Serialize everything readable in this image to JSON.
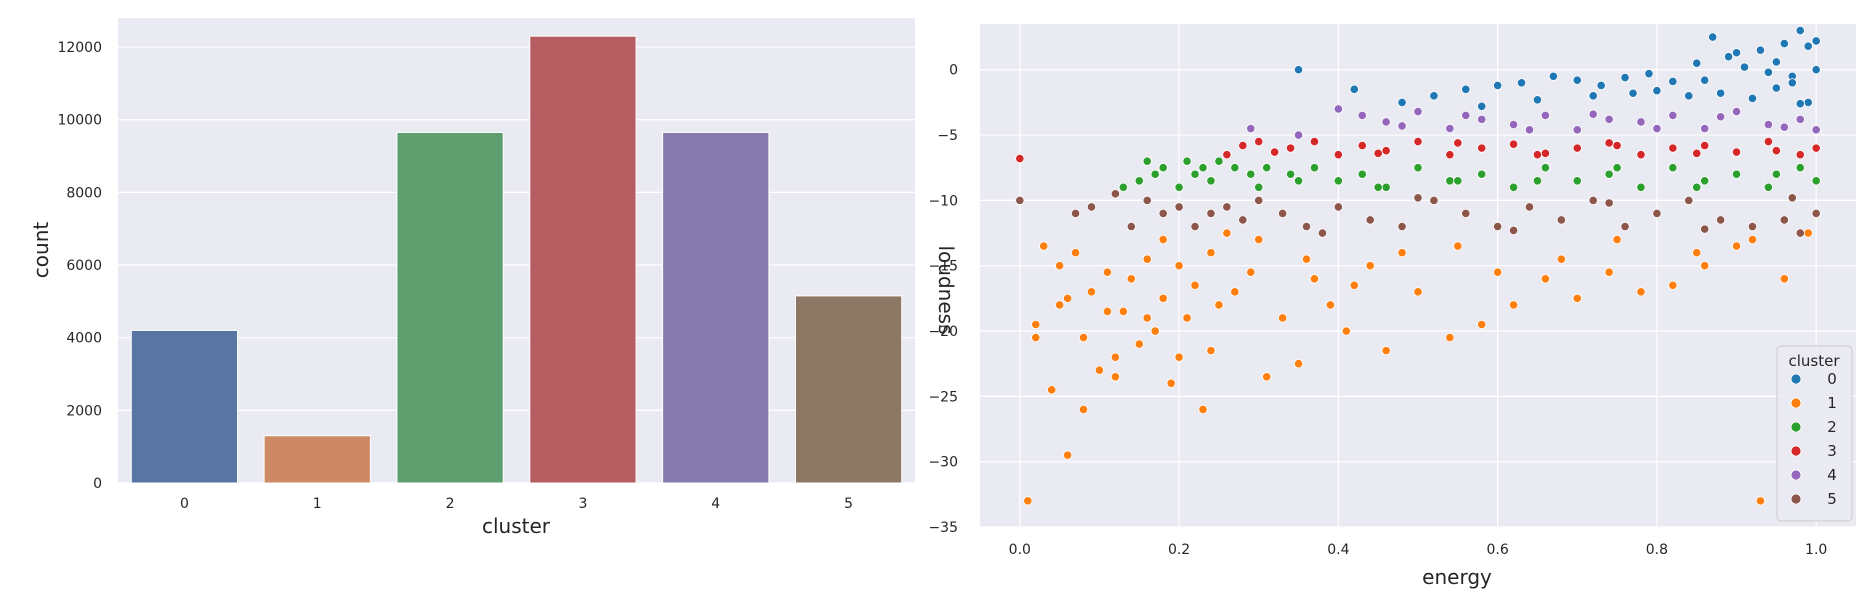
{
  "chart_data": [
    {
      "type": "bar",
      "title": "",
      "xlabel": "cluster",
      "ylabel": "count",
      "categories": [
        "0",
        "1",
        "2",
        "3",
        "4",
        "5"
      ],
      "values": [
        4200,
        1300,
        9650,
        12300,
        9650,
        5150
      ],
      "ylim": [
        0,
        12800
      ],
      "yticks": [
        0,
        2000,
        4000,
        6000,
        8000,
        10000,
        12000
      ],
      "grid": true,
      "colors": [
        "#5975a4",
        "#cc8963",
        "#5f9e6e",
        "#b55d60",
        "#857aab",
        "#8d7866"
      ]
    },
    {
      "type": "scatter",
      "title": "",
      "xlabel": "energy",
      "ylabel": "loudness",
      "xlim": [
        -0.05,
        1.05
      ],
      "ylim": [
        -35,
        3.5
      ],
      "xticks": [
        0.0,
        0.2,
        0.4,
        0.6,
        0.8,
        1.0
      ],
      "yticks": [
        0,
        -5,
        -10,
        -15,
        -20,
        -25,
        -30,
        -35
      ],
      "grid": true,
      "legend": {
        "title": "cluster",
        "position": "lower-right",
        "entries": [
          "0",
          "1",
          "2",
          "3",
          "4",
          "5"
        ]
      },
      "series": [
        {
          "name": "0",
          "color": "#1f77b4",
          "x": [
            0.35,
            0.42,
            0.48,
            0.52,
            0.56,
            0.6,
            0.63,
            0.67,
            0.7,
            0.73,
            0.76,
            0.79,
            0.82,
            0.85,
            0.87,
            0.89,
            0.91,
            0.93,
            0.95,
            0.96,
            0.97,
            0.98,
            0.99,
            1.0,
            0.88,
            0.92,
            0.94,
            0.97,
            0.99,
            0.72,
            0.8,
            0.86,
            0.9,
            0.95,
            0.98,
            1.0,
            0.65,
            0.58,
            0.84,
            0.77
          ],
          "y": [
            0,
            -1.5,
            -2.5,
            -2.0,
            -1.5,
            -1.2,
            -1.0,
            -0.5,
            -0.8,
            -1.2,
            -0.6,
            -0.3,
            -0.9,
            0.5,
            2.5,
            1.0,
            0.2,
            1.5,
            0.6,
            2.0,
            -0.5,
            3.0,
            1.8,
            0.0,
            -1.8,
            -2.2,
            -0.2,
            -1.0,
            -2.5,
            -2.0,
            -1.6,
            -0.8,
            1.3,
            -1.4,
            -2.6,
            2.2,
            -2.3,
            -2.8,
            -2.0,
            -1.8
          ]
        },
        {
          "name": "1",
          "color": "#ff7f0e",
          "x": [
            0.01,
            0.02,
            0.03,
            0.04,
            0.05,
            0.06,
            0.07,
            0.08,
            0.09,
            0.1,
            0.11,
            0.12,
            0.13,
            0.14,
            0.15,
            0.16,
            0.17,
            0.18,
            0.19,
            0.2,
            0.21,
            0.22,
            0.23,
            0.24,
            0.25,
            0.27,
            0.29,
            0.31,
            0.33,
            0.35,
            0.37,
            0.39,
            0.41,
            0.44,
            0.46,
            0.5,
            0.54,
            0.58,
            0.62,
            0.66,
            0.7,
            0.74,
            0.78,
            0.82,
            0.86,
            0.9,
            0.93,
            0.96,
            0.99,
            0.06,
            0.08,
            0.12,
            0.16,
            0.2,
            0.24,
            0.3,
            0.36,
            0.42,
            0.48,
            0.55,
            0.6,
            0.68,
            0.75,
            0.85,
            0.92,
            0.02,
            0.05,
            0.11,
            0.18,
            0.26
          ],
          "y": [
            -33,
            -19.5,
            -13.5,
            -24.5,
            -18,
            -29.5,
            -14,
            -26,
            -17,
            -23,
            -15.5,
            -22,
            -18.5,
            -16,
            -21,
            -14.5,
            -20,
            -17.5,
            -24,
            -15,
            -19,
            -16.5,
            -26,
            -14,
            -18,
            -17,
            -15.5,
            -23.5,
            -19,
            -22.5,
            -16,
            -18,
            -20,
            -15,
            -21.5,
            -17,
            -20.5,
            -19.5,
            -18,
            -16,
            -17.5,
            -15.5,
            -17,
            -16.5,
            -15,
            -13.5,
            -33,
            -16,
            -12.5,
            -17.5,
            -20.5,
            -23.5,
            -19,
            -22,
            -21.5,
            -13,
            -14.5,
            -16.5,
            -14,
            -13.5,
            -15.5,
            -14.5,
            -13,
            -14,
            -13,
            -20.5,
            -15,
            -18.5,
            -13,
            -12.5
          ]
        },
        {
          "name": "2",
          "color": "#2ca02c",
          "x": [
            0.13,
            0.15,
            0.16,
            0.17,
            0.18,
            0.2,
            0.21,
            0.22,
            0.23,
            0.24,
            0.25,
            0.27,
            0.29,
            0.31,
            0.34,
            0.37,
            0.4,
            0.43,
            0.46,
            0.5,
            0.54,
            0.58,
            0.62,
            0.66,
            0.7,
            0.74,
            0.78,
            0.82,
            0.86,
            0.9,
            0.94,
            0.98,
            1.0,
            0.3,
            0.35,
            0.45,
            0.55,
            0.65,
            0.75,
            0.85,
            0.95
          ],
          "y": [
            -9,
            -8.5,
            -7,
            -8,
            -7.5,
            -9,
            -7,
            -8,
            -7.5,
            -8.5,
            -7,
            -7.5,
            -8,
            -7.5,
            -8,
            -7.5,
            -8.5,
            -8,
            -9,
            -7.5,
            -8.5,
            -8,
            -9,
            -7.5,
            -8.5,
            -8,
            -9,
            -7.5,
            -8.5,
            -8,
            -9,
            -7.5,
            -8.5,
            -9,
            -8.5,
            -9,
            -8.5,
            -8.5,
            -7.5,
            -9,
            -8
          ]
        },
        {
          "name": "3",
          "color": "#d62728",
          "x": [
            0.0,
            0.26,
            0.28,
            0.3,
            0.32,
            0.34,
            0.37,
            0.4,
            0.43,
            0.46,
            0.5,
            0.54,
            0.58,
            0.62,
            0.66,
            0.7,
            0.74,
            0.78,
            0.82,
            0.86,
            0.9,
            0.94,
            0.98,
            1.0,
            0.45,
            0.55,
            0.65,
            0.75,
            0.85,
            0.95
          ],
          "y": [
            -6.8,
            -6.5,
            -5.8,
            -5.5,
            -6.3,
            -6.0,
            -5.5,
            -6.5,
            -5.8,
            -6.2,
            -5.5,
            -6.5,
            -6.0,
            -5.7,
            -6.4,
            -6.0,
            -5.6,
            -6.5,
            -6.0,
            -5.8,
            -6.3,
            -5.5,
            -6.5,
            -6.0,
            -6.4,
            -5.6,
            -6.5,
            -5.8,
            -6.4,
            -6.2
          ]
        },
        {
          "name": "4",
          "color": "#9467bd",
          "x": [
            0.29,
            0.35,
            0.4,
            0.43,
            0.46,
            0.5,
            0.54,
            0.58,
            0.62,
            0.66,
            0.7,
            0.74,
            0.78,
            0.82,
            0.86,
            0.9,
            0.94,
            0.98,
            1.0,
            0.48,
            0.56,
            0.64,
            0.72,
            0.8,
            0.88,
            0.96
          ],
          "y": [
            -4.5,
            -5.0,
            -3.0,
            -3.5,
            -4.0,
            -3.2,
            -4.5,
            -3.8,
            -4.2,
            -3.5,
            -4.6,
            -3.8,
            -4.0,
            -3.5,
            -4.5,
            -3.2,
            -4.2,
            -3.8,
            -4.6,
            -4.3,
            -3.5,
            -4.6,
            -3.4,
            -4.5,
            -3.6,
            -4.4
          ]
        },
        {
          "name": "5",
          "color": "#8c564b",
          "x": [
            0.0,
            0.07,
            0.09,
            0.12,
            0.14,
            0.16,
            0.18,
            0.2,
            0.22,
            0.24,
            0.26,
            0.28,
            0.3,
            0.33,
            0.36,
            0.4,
            0.44,
            0.48,
            0.52,
            0.56,
            0.6,
            0.64,
            0.68,
            0.72,
            0.76,
            0.8,
            0.84,
            0.88,
            0.92,
            0.96,
            0.98,
            1.0,
            0.38,
            0.5,
            0.62,
            0.74,
            0.86,
            0.97
          ],
          "y": [
            -10,
            -11,
            -10.5,
            -9.5,
            -12,
            -10,
            -11,
            -10.5,
            -12,
            -11,
            -10.5,
            -11.5,
            -10,
            -11,
            -12,
            -10.5,
            -11.5,
            -12,
            -10,
            -11,
            -12,
            -10.5,
            -11.5,
            -10,
            -12,
            -11,
            -10,
            -11.5,
            -12,
            -11.5,
            -12.5,
            -11,
            -12.5,
            -9.8,
            -12.3,
            -10.2,
            -12.2,
            -9.8
          ]
        }
      ]
    }
  ]
}
